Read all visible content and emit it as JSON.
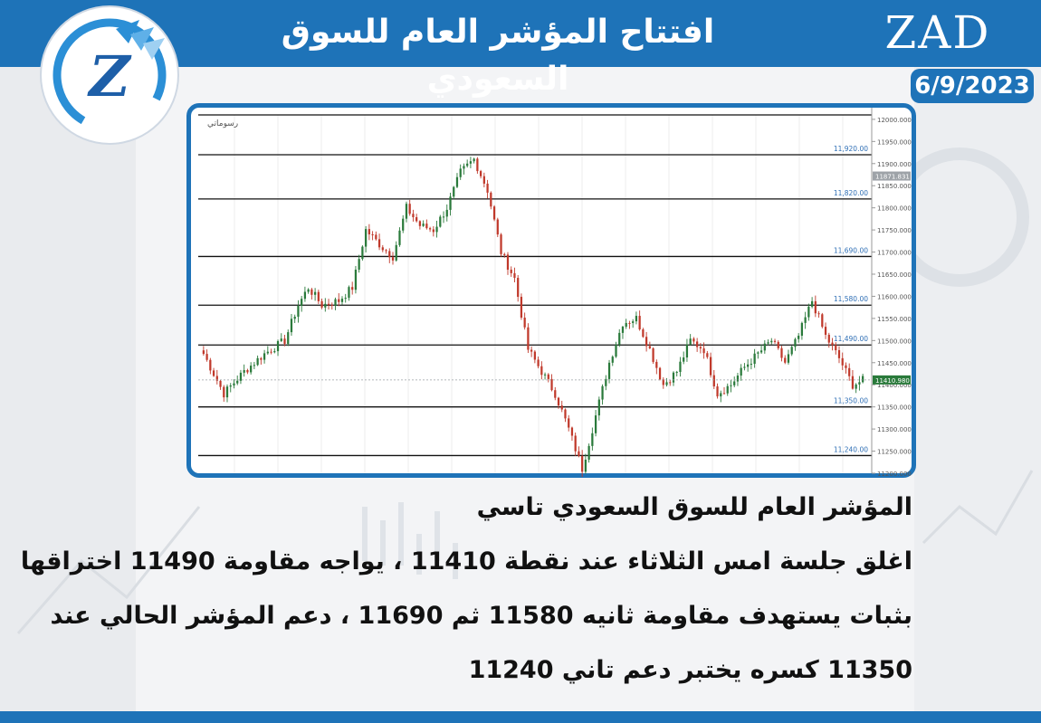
{
  "header": {
    "title": "افتتاح المؤشر العام للسوق السعودي",
    "brand": "ZAD",
    "date": "6/9/2023",
    "logo_letter": "Z"
  },
  "colors": {
    "accent": "#1e73b8",
    "bull": "#2a7a3b",
    "bear": "#c0392b",
    "level_line": "#111111",
    "level_label": "#2f6fb5"
  },
  "chart_data": {
    "type": "candlestick",
    "corner_label": "رسوماتي",
    "ylim": [
      11200,
      12010
    ],
    "y_ticks": [
      12000,
      11950,
      11900,
      11850,
      11800,
      11750,
      11700,
      11650,
      11600,
      11550,
      11500,
      11450,
      11400,
      11350,
      11300,
      11250,
      11200
    ],
    "y_tick_labels": [
      "12000.000",
      "11950.000",
      "11900.000",
      "11850.000",
      "11800.000",
      "11750.000",
      "11700.000",
      "11650.000",
      "11600.000",
      "11550.000",
      "11500.000",
      "11450.000",
      "11400.000",
      "11350.000",
      "11300.000",
      "11250.000",
      "11200.000"
    ],
    "levels": [
      {
        "value": 12010,
        "label": ""
      },
      {
        "value": 11920,
        "label": "11,920.00"
      },
      {
        "value": 11820,
        "label": "11,820.00"
      },
      {
        "value": 11690,
        "label": "11,690.00"
      },
      {
        "value": 11580,
        "label": "11,580.00"
      },
      {
        "value": 11490,
        "label": "11,490.00"
      },
      {
        "value": 11350,
        "label": "11,350.00"
      },
      {
        "value": 11240,
        "label": "11,240.00"
      }
    ],
    "markers": [
      {
        "value": 11871.831,
        "label": "11871.831",
        "color": "#9ea3a8"
      },
      {
        "value": 11410.98,
        "label": "11410.980",
        "color": "#2a7a3b"
      }
    ],
    "current_price": 11410.98,
    "anchors": [
      [
        0,
        11470
      ],
      [
        6,
        11380
      ],
      [
        12,
        11430
      ],
      [
        18,
        11470
      ],
      [
        24,
        11500
      ],
      [
        28,
        11580
      ],
      [
        31,
        11620
      ],
      [
        35,
        11580
      ],
      [
        40,
        11590
      ],
      [
        44,
        11620
      ],
      [
        48,
        11750
      ],
      [
        53,
        11710
      ],
      [
        56,
        11690
      ],
      [
        60,
        11800
      ],
      [
        64,
        11760
      ],
      [
        68,
        11750
      ],
      [
        72,
        11800
      ],
      [
        76,
        11880
      ],
      [
        80,
        11910
      ],
      [
        84,
        11840
      ],
      [
        88,
        11700
      ],
      [
        92,
        11640
      ],
      [
        96,
        11480
      ],
      [
        100,
        11430
      ],
      [
        104,
        11380
      ],
      [
        108,
        11300
      ],
      [
        112,
        11210
      ],
      [
        116,
        11330
      ],
      [
        120,
        11450
      ],
      [
        124,
        11540
      ],
      [
        128,
        11550
      ],
      [
        132,
        11480
      ],
      [
        136,
        11400
      ],
      [
        140,
        11430
      ],
      [
        144,
        11500
      ],
      [
        148,
        11480
      ],
      [
        152,
        11380
      ],
      [
        156,
        11400
      ],
      [
        160,
        11440
      ],
      [
        164,
        11470
      ],
      [
        168,
        11500
      ],
      [
        172,
        11450
      ],
      [
        176,
        11510
      ],
      [
        180,
        11590
      ],
      [
        184,
        11510
      ],
      [
        188,
        11460
      ],
      [
        192,
        11400
      ],
      [
        195,
        11410
      ]
    ]
  },
  "article": {
    "lines": [
      "المؤشر العام للسوق السعودي تاسي",
      "اغلق جلسة  امس الثلاثاء عند نقطة 11410  ، يواجه مقاومة 11490 اختراقها",
      "بثبات يستهدف مقاومة ثانيه 11580 ثم 11690 ، دعم المؤشر الحالي عند",
      "11350 كسره يختبر دعم  تاني 11240"
    ]
  }
}
